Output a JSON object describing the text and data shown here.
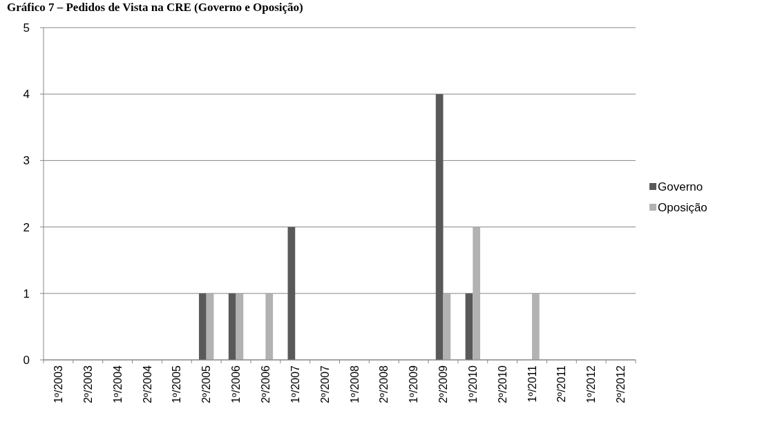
{
  "chart_data": {
    "type": "bar",
    "title": "Gráfico 7 – Pedidos de Vista na CRE (Governo e Oposição)",
    "categories": [
      "1º/2003",
      "2º/2003",
      "1º/2004",
      "2º/2004",
      "1º/2005",
      "2º/2005",
      "1º/2006",
      "2º/2006",
      "1º/2007",
      "2º/2007",
      "1º/2008",
      "2º/2008",
      "1º/2009",
      "2º/2009",
      "1º/2010",
      "2º/2010",
      "1º/2011",
      "2º/2011",
      "1º/2012",
      "2º/2012"
    ],
    "series": [
      {
        "name": "Governo",
        "color": "#595959",
        "values": [
          0,
          0,
          0,
          0,
          0,
          1,
          1,
          0,
          2,
          0,
          0,
          0,
          0,
          4,
          1,
          0,
          0,
          0,
          0,
          0
        ]
      },
      {
        "name": "Oposição",
        "color": "#b2b2b2",
        "values": [
          0,
          0,
          0,
          0,
          0,
          1,
          1,
          1,
          0,
          0,
          0,
          0,
          0,
          1,
          2,
          0,
          1,
          0,
          0,
          0
        ]
      }
    ],
    "ylim": [
      0,
      5
    ],
    "yticks": [
      0,
      1,
      2,
      3,
      4,
      5
    ],
    "grid": "y",
    "legend": "right"
  }
}
